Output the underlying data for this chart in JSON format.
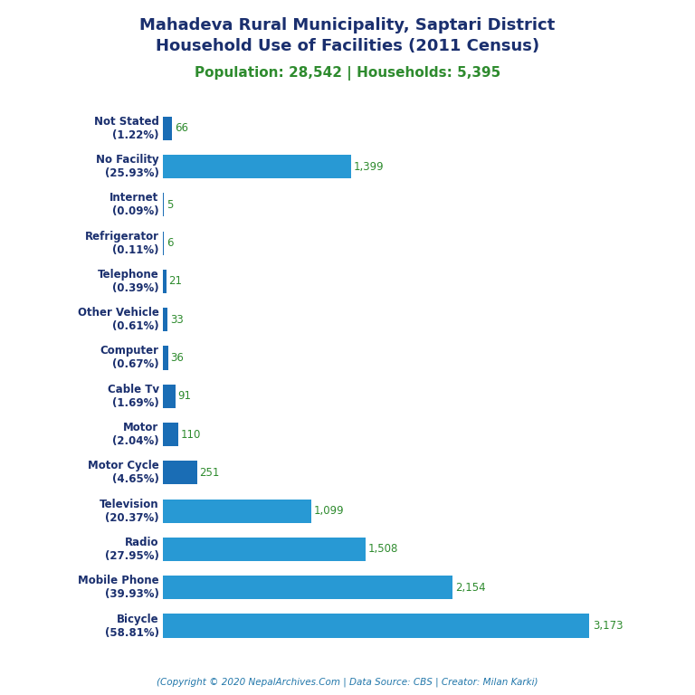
{
  "title_line1": "Mahadeva Rural Municipality, Saptari District",
  "title_line2": "Household Use of Facilities (2011 Census)",
  "subtitle": "Population: 28,542 | Households: 5,395",
  "footer": "(Copyright © 2020 NepalArchives.Com | Data Source: CBS | Creator: Milan Karki)",
  "categories": [
    "Bicycle\n(58.81%)",
    "Mobile Phone\n(39.93%)",
    "Radio\n(27.95%)",
    "Television\n(20.37%)",
    "Motor Cycle\n(4.65%)",
    "Motor\n(2.04%)",
    "Cable Tv\n(1.69%)",
    "Computer\n(0.67%)",
    "Other Vehicle\n(0.61%)",
    "Telephone\n(0.39%)",
    "Refrigerator\n(0.11%)",
    "Internet\n(0.09%)",
    "No Facility\n(25.93%)",
    "Not Stated\n(1.22%)"
  ],
  "values": [
    3173,
    2154,
    1508,
    1099,
    251,
    110,
    91,
    36,
    33,
    21,
    6,
    5,
    1399,
    66
  ],
  "value_labels": [
    "3,173",
    "2,154",
    "1,508",
    "1,099",
    "251",
    "110",
    "91",
    "36",
    "33",
    "21",
    "6",
    "5",
    "1,399",
    "66"
  ],
  "bar_colors": [
    "#2899d4",
    "#2899d4",
    "#2899d4",
    "#2899d4",
    "#1a6db5",
    "#1a6db5",
    "#1a6db5",
    "#1a6db5",
    "#1a6db5",
    "#1a6db5",
    "#1a6db5",
    "#1a6db5",
    "#2899d4",
    "#1a6db5"
  ],
  "title_color": "#1a2f6e",
  "subtitle_color": "#2e8b2e",
  "value_color": "#2e8b2e",
  "label_color": "#1a2f6e",
  "footer_color": "#2277aa",
  "background_color": "#ffffff",
  "figsize": [
    7.68,
    7.68
  ],
  "dpi": 100
}
